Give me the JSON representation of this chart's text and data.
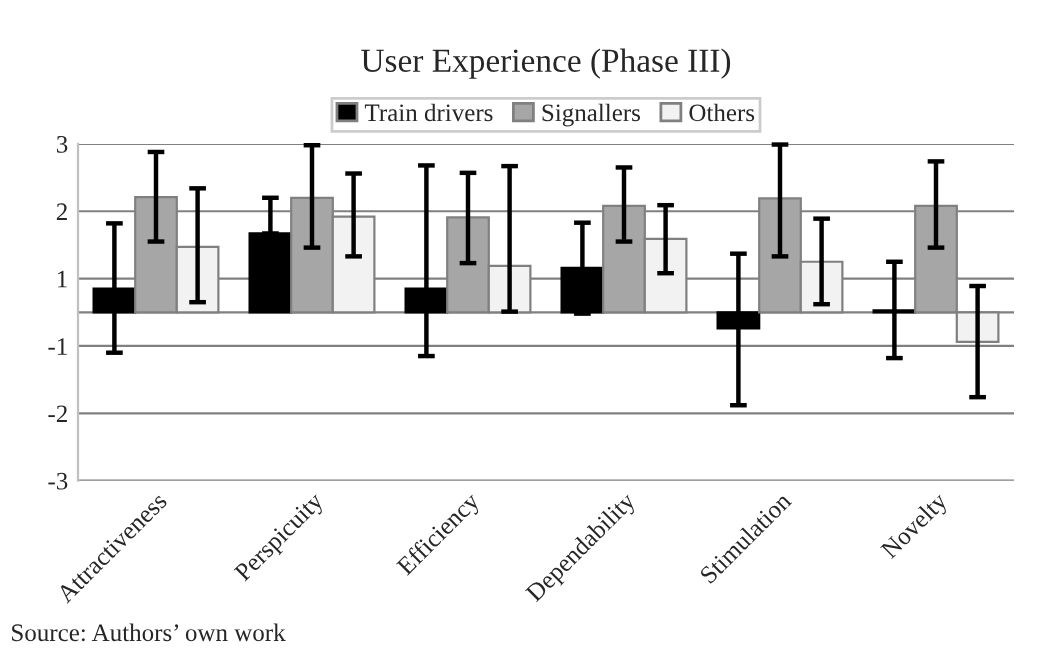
{
  "chart_data": {
    "type": "bar",
    "title": "User Experience (Phase III)",
    "categories": [
      "Attractiveness",
      "Perspicuity",
      "Efficiency",
      "Dependability",
      "Stimulation",
      "Novelty"
    ],
    "series": [
      {
        "name": "Train drivers",
        "color": "#000000",
        "values": [
          0.35,
          1.17,
          0.35,
          0.66,
          -0.24,
          0.03
        ],
        "errors": [
          [
            -0.6,
            1.32
          ],
          [
            1.17,
            1.7
          ],
          [
            -0.65,
            2.18
          ],
          [
            -0.02,
            1.33
          ],
          [
            -1.38,
            0.87
          ],
          [
            -0.68,
            0.75
          ]
        ]
      },
      {
        "name": "Signallers",
        "color": "#a6a6a6",
        "values": [
          1.71,
          1.7,
          1.41,
          1.58,
          1.69,
          1.58
        ],
        "errors": [
          [
            1.05,
            2.38
          ],
          [
            0.96,
            2.48
          ],
          [
            0.73,
            2.07
          ],
          [
            1.05,
            2.15
          ],
          [
            0.83,
            2.49
          ],
          [
            0.96,
            2.24
          ]
        ]
      },
      {
        "name": "Others",
        "color": "#f2f2f2",
        "values": [
          0.97,
          1.42,
          0.69,
          1.09,
          0.75,
          -0.44
        ],
        "errors": [
          [
            0.15,
            1.84
          ],
          [
            0.83,
            2.06
          ],
          [
            0.01,
            2.17
          ],
          [
            0.58,
            1.59
          ],
          [
            0.12,
            1.39
          ],
          [
            -1.26,
            0.39
          ]
        ]
      }
    ],
    "ylim": [
      -2.5,
      2.5
    ],
    "yticks": [
      {
        "value": 2.5,
        "label": "3"
      },
      {
        "value": 1.5,
        "label": "2"
      },
      {
        "value": 0.5,
        "label": "1"
      },
      {
        "value": -0.5,
        "label": "-1"
      },
      {
        "value": -1.5,
        "label": "-2"
      },
      {
        "value": -2.5,
        "label": "-3"
      }
    ],
    "grid": "y",
    "legend": "top",
    "annotations": [
      "Source: Authors’ own work"
    ]
  }
}
